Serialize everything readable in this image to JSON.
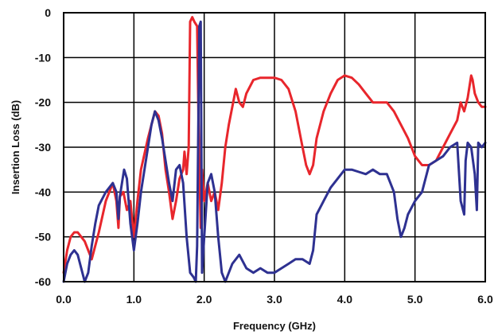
{
  "chart_data": {
    "type": "line",
    "title": "",
    "xlabel": "Frequency (GHz)",
    "ylabel": "Insertion Loss (dB)",
    "xlim": [
      0,
      6
    ],
    "ylim": [
      -60,
      0
    ],
    "x_ticks": [
      "0.0",
      "1.0",
      "2.0",
      "3.0",
      "4.0",
      "5.0",
      "6.0"
    ],
    "y_ticks": [
      "0",
      "-10",
      "-20",
      "-30",
      "-40",
      "-50",
      "-60"
    ],
    "grid": true,
    "legend": "none",
    "series": [
      {
        "color": "#e8262c",
        "x": [
          0.0,
          0.05,
          0.1,
          0.15,
          0.2,
          0.3,
          0.4,
          0.5,
          0.6,
          0.7,
          0.75,
          0.78,
          0.8,
          0.85,
          0.9,
          0.95,
          1.0,
          1.05,
          1.1,
          1.2,
          1.3,
          1.35,
          1.4,
          1.45,
          1.5,
          1.55,
          1.6,
          1.65,
          1.7,
          1.72,
          1.75,
          1.78,
          1.8,
          1.83,
          1.86,
          1.9,
          1.92,
          1.95,
          1.97,
          2.0,
          2.05,
          2.1,
          2.15,
          2.2,
          2.25,
          2.3,
          2.35,
          2.4,
          2.45,
          2.5,
          2.55,
          2.6,
          2.7,
          2.8,
          2.9,
          3.0,
          3.1,
          3.2,
          3.3,
          3.4,
          3.45,
          3.5,
          3.55,
          3.6,
          3.7,
          3.8,
          3.9,
          4.0,
          4.1,
          4.2,
          4.3,
          4.4,
          4.5,
          4.6,
          4.7,
          4.8,
          4.9,
          5.0,
          5.05,
          5.1,
          5.2,
          5.3,
          5.4,
          5.5,
          5.6,
          5.65,
          5.7,
          5.75,
          5.8,
          5.82,
          5.85,
          5.9,
          5.95,
          6.0
        ],
        "y": [
          -58,
          -53,
          -50,
          -49,
          -49,
          -51,
          -55,
          -49,
          -42,
          -38,
          -42,
          -48,
          -41,
          -40,
          -44,
          -42,
          -50,
          -42,
          -35,
          -28,
          -22,
          -23,
          -27,
          -35,
          -40,
          -46,
          -42,
          -37,
          -35,
          -31,
          -36,
          -30,
          -2,
          -1,
          -2,
          -3,
          -25,
          -48,
          -35,
          -42,
          -38,
          -42,
          -40,
          -44,
          -38,
          -30,
          -25,
          -21,
          -17,
          -20,
          -21,
          -18,
          -15,
          -14.5,
          -14.5,
          -14.5,
          -15,
          -17,
          -22,
          -30,
          -34,
          -36,
          -34,
          -28,
          -22,
          -18,
          -15,
          -14,
          -14.5,
          -16,
          -18,
          -20,
          -20,
          -20,
          -22,
          -25,
          -28,
          -32,
          -33,
          -34,
          -34,
          -33,
          -30,
          -27,
          -24,
          -20,
          -22,
          -19,
          -14,
          -15,
          -18,
          -20,
          -21,
          -21
        ]
      },
      {
        "color": "#2e3191",
        "x": [
          0.0,
          0.05,
          0.1,
          0.15,
          0.2,
          0.25,
          0.3,
          0.35,
          0.4,
          0.45,
          0.5,
          0.6,
          0.7,
          0.75,
          0.78,
          0.8,
          0.83,
          0.86,
          0.9,
          0.95,
          1.0,
          1.05,
          1.1,
          1.2,
          1.25,
          1.3,
          1.35,
          1.4,
          1.45,
          1.5,
          1.55,
          1.6,
          1.65,
          1.7,
          1.75,
          1.8,
          1.85,
          1.88,
          1.9,
          1.93,
          1.95,
          1.97,
          2.0,
          2.05,
          2.1,
          2.15,
          2.2,
          2.25,
          2.3,
          2.4,
          2.5,
          2.6,
          2.7,
          2.8,
          2.9,
          3.0,
          3.1,
          3.2,
          3.3,
          3.4,
          3.5,
          3.55,
          3.6,
          3.7,
          3.8,
          3.9,
          4.0,
          4.1,
          4.2,
          4.3,
          4.4,
          4.5,
          4.6,
          4.7,
          4.75,
          4.8,
          4.85,
          4.9,
          5.0,
          5.1,
          5.2,
          5.3,
          5.4,
          5.5,
          5.6,
          5.65,
          5.7,
          5.72,
          5.75,
          5.8,
          5.85,
          5.88,
          5.9,
          5.95,
          6.0
        ],
        "y": [
          -60,
          -56,
          -54,
          -53,
          -54,
          -57,
          -60,
          -58,
          -52,
          -47,
          -43,
          -40,
          -38,
          -40,
          -46,
          -41,
          -38,
          -35,
          -37,
          -47,
          -53,
          -47,
          -40,
          -30,
          -25,
          -22,
          -24,
          -28,
          -33,
          -38,
          -42,
          -35,
          -34,
          -38,
          -50,
          -58,
          -59,
          -60,
          -52,
          -3,
          -2,
          -58,
          -50,
          -38,
          -36,
          -40,
          -50,
          -58,
          -60,
          -56,
          -54,
          -57,
          -58,
          -57,
          -58,
          -58,
          -57,
          -56,
          -55,
          -55,
          -56,
          -53,
          -45,
          -42,
          -39,
          -37,
          -35,
          -35,
          -35.5,
          -36,
          -35,
          -36,
          -36,
          -40,
          -46,
          -50,
          -48,
          -45,
          -42,
          -40,
          -34,
          -33,
          -32,
          -30,
          -29,
          -42,
          -45,
          -33,
          -29,
          -30,
          -36,
          -44,
          -29,
          -30,
          -29
        ]
      }
    ]
  }
}
